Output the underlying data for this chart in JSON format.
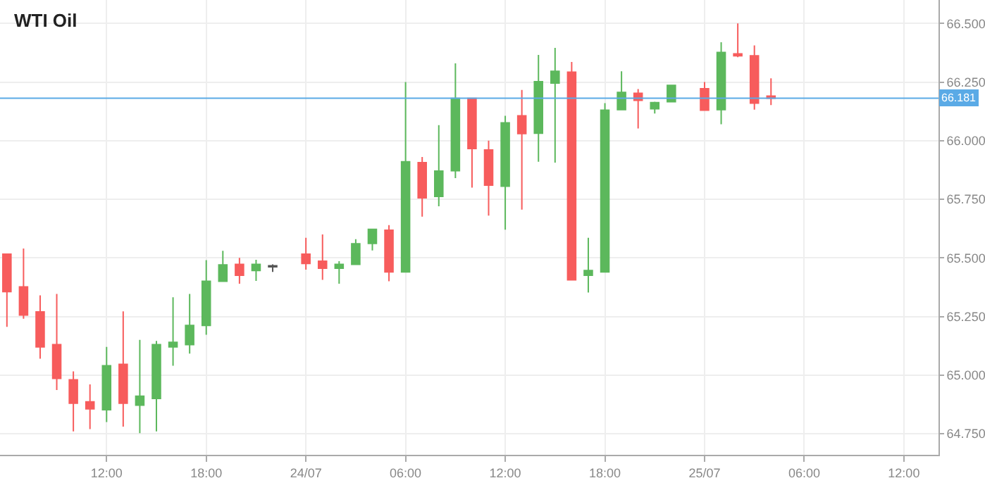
{
  "chart_data": {
    "type": "candlestick",
    "title": "WTI Oil",
    "x": [
      "--07-23T06:00",
      "--07-23T07:00",
      "--07-23T08:00",
      "--07-23T09:00",
      "--07-23T10:00",
      "--07-23T11:00",
      "--07-23T12:00",
      "--07-23T13:00",
      "--07-23T14:00",
      "--07-23T15:00",
      "--07-23T16:00",
      "--07-23T17:00",
      "--07-23T18:00",
      "--07-23T19:00",
      "--07-23T20:00",
      "--07-23T21:00",
      "--07-23T22:00",
      "--07-24T00:00",
      "--07-24T01:00",
      "--07-24T02:00",
      "--07-24T03:00",
      "--07-24T04:00",
      "--07-24T05:00",
      "--07-24T06:00",
      "--07-24T07:00",
      "--07-24T08:00",
      "--07-24T09:00",
      "--07-24T10:00",
      "--07-24T11:00",
      "--07-24T12:00",
      "--07-24T13:00",
      "--07-24T14:00",
      "--07-24T15:00",
      "--07-24T16:00",
      "--07-24T17:00",
      "--07-24T18:00",
      "--07-24T19:00",
      "--07-24T20:00",
      "--07-24T21:00",
      "--07-24T22:00",
      "--07-25T00:00",
      "--07-25T01:00",
      "--07-25T02:00",
      "--07-25T03:00",
      "--07-25T04:00"
    ],
    "ohlc": [
      [
        65.516,
        65.516,
        65.206,
        65.356
      ],
      [
        65.376,
        65.54,
        65.24,
        65.256
      ],
      [
        65.27,
        65.34,
        65.07,
        65.12
      ],
      [
        65.13,
        65.346,
        64.936,
        64.986
      ],
      [
        64.98,
        65.016,
        64.76,
        64.88
      ],
      [
        64.886,
        64.96,
        64.77,
        64.856
      ],
      [
        64.852,
        65.12,
        64.8,
        65.04
      ],
      [
        65.046,
        65.272,
        64.78,
        64.88
      ],
      [
        64.872,
        65.15,
        64.752,
        64.91
      ],
      [
        64.9,
        65.146,
        64.76,
        65.13
      ],
      [
        65.12,
        65.332,
        65.04,
        65.14
      ],
      [
        65.13,
        65.346,
        65.092,
        65.212
      ],
      [
        65.212,
        65.49,
        65.172,
        65.4
      ],
      [
        65.4,
        65.53,
        65.4,
        65.47
      ],
      [
        65.472,
        65.5,
        65.39,
        65.426
      ],
      [
        65.446,
        65.492,
        65.402,
        65.472
      ],
      [
        65.462,
        65.472,
        65.44,
        65.466
      ],
      [
        65.516,
        65.586,
        65.45,
        65.476
      ],
      [
        65.486,
        65.6,
        65.406,
        65.456
      ],
      [
        65.456,
        65.486,
        65.39,
        65.472
      ],
      [
        65.472,
        65.58,
        65.47,
        65.56
      ],
      [
        65.562,
        65.622,
        65.532,
        65.622
      ],
      [
        65.618,
        65.64,
        65.4,
        65.44
      ],
      [
        65.44,
        66.25,
        65.44,
        65.91
      ],
      [
        65.906,
        65.93,
        65.676,
        65.756
      ],
      [
        65.762,
        66.066,
        65.72,
        65.87
      ],
      [
        65.872,
        66.33,
        65.84,
        66.18
      ],
      [
        66.18,
        66.18,
        65.8,
        65.966
      ],
      [
        65.96,
        66.0,
        65.68,
        65.81
      ],
      [
        65.806,
        66.106,
        65.62,
        66.076
      ],
      [
        66.106,
        66.216,
        65.706,
        66.03
      ],
      [
        66.032,
        66.366,
        65.91,
        66.252
      ],
      [
        66.246,
        66.396,
        65.906,
        66.296
      ],
      [
        66.292,
        66.336,
        65.406,
        65.406
      ],
      [
        65.426,
        65.586,
        65.352,
        65.446
      ],
      [
        65.44,
        66.16,
        65.44,
        66.13
      ],
      [
        66.132,
        66.296,
        66.132,
        66.206
      ],
      [
        66.202,
        66.22,
        66.052,
        66.172
      ],
      [
        66.136,
        66.166,
        66.116,
        66.162
      ],
      [
        66.166,
        66.236,
        66.166,
        66.236
      ],
      [
        66.222,
        66.25,
        66.13,
        66.13
      ],
      [
        66.132,
        66.42,
        66.07,
        66.376
      ],
      [
        66.37,
        66.5,
        66.356,
        66.362
      ],
      [
        66.362,
        66.406,
        66.132,
        66.16
      ],
      [
        66.19,
        66.266,
        66.152,
        66.181
      ]
    ],
    "colors": [
      "#f75c5c",
      "#f75c5c",
      "#f75c5c",
      "#f75c5c",
      "#f75c5c",
      "#f75c5c",
      "#5cb85c",
      "#f75c5c",
      "#5cb85c",
      "#5cb85c",
      "#5cb85c",
      "#5cb85c",
      "#5cb85c",
      "#5cb85c",
      "#f75c5c",
      "#5cb85c",
      "#555555",
      "#f75c5c",
      "#f75c5c",
      "#5cb85c",
      "#5cb85c",
      "#5cb85c",
      "#f75c5c",
      "#5cb85c",
      "#f75c5c",
      "#5cb85c",
      "#5cb85c",
      "#f75c5c",
      "#f75c5c",
      "#5cb85c",
      "#f75c5c",
      "#5cb85c",
      "#5cb85c",
      "#f75c5c",
      "#5cb85c",
      "#5cb85c",
      "#5cb85c",
      "#f75c5c",
      "#5cb85c",
      "#5cb85c",
      "#f75c5c",
      "#5cb85c",
      "#f75c5c",
      "#f75c5c",
      "#f75c5c"
    ],
    "xlim": [
      "--07-23T05:35",
      "--07-25T14:05"
    ],
    "xticks": [
      {
        "value": "--07-23T12:00",
        "label": "12:00"
      },
      {
        "value": "--07-23T18:00",
        "label": "18:00"
      },
      {
        "value": "--07-24T00:00",
        "label": "24/07"
      },
      {
        "value": "--07-24T06:00",
        "label": "06:00"
      },
      {
        "value": "--07-24T12:00",
        "label": "12:00"
      },
      {
        "value": "--07-24T18:00",
        "label": "18:00"
      },
      {
        "value": "--07-25T00:00",
        "label": "25/07"
      },
      {
        "value": "--07-25T06:00",
        "label": "06:00"
      },
      {
        "value": "--07-25T12:00",
        "label": "12:00"
      }
    ],
    "ylim": [
      64.66,
      66.6
    ],
    "yticks": [
      {
        "value": 64.75,
        "label": "64.750"
      },
      {
        "value": 65.0,
        "label": "65.000"
      },
      {
        "value": 65.25,
        "label": "65.250"
      },
      {
        "value": 65.5,
        "label": "65.500"
      },
      {
        "value": 65.75,
        "label": "65.750"
      },
      {
        "value": 66.0,
        "label": "66.000"
      },
      {
        "value": 66.25,
        "label": "66.250"
      },
      {
        "value": 66.5,
        "label": "66.500"
      }
    ],
    "ref_lines": [
      {
        "axis": "y",
        "value": 66.181,
        "label": "66.181",
        "color": "#5aaae6"
      }
    ],
    "grid": true
  }
}
